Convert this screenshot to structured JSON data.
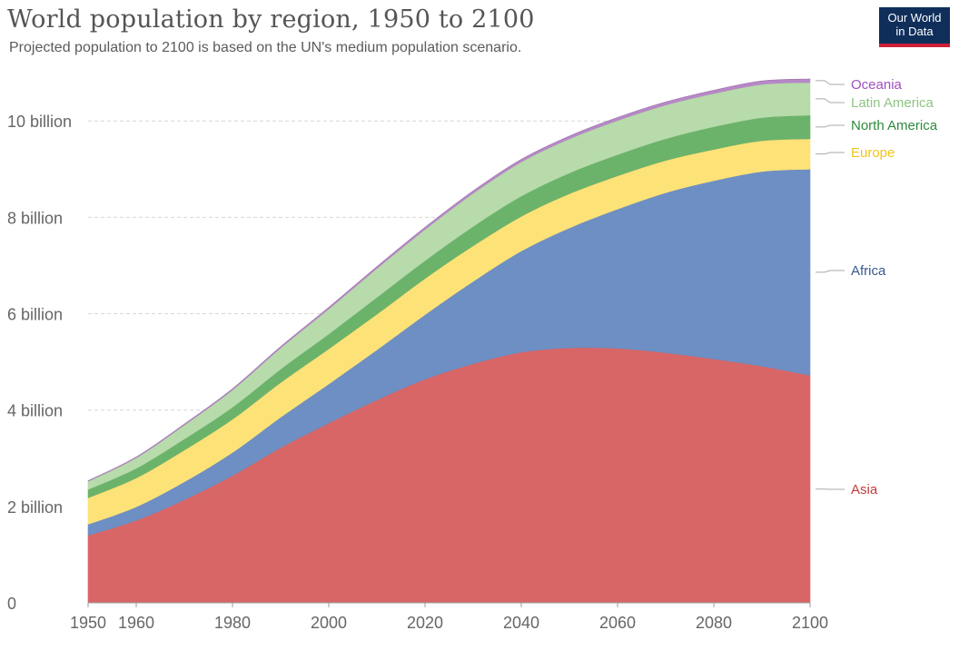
{
  "header": {
    "title": "World population by region, 1950 to 2100",
    "subtitle": "Projected population to 2100 is based on the UN's medium population scenario.",
    "logo_line1": "Our World",
    "logo_line2": "in Data"
  },
  "colors": {
    "Asia": "#d96666",
    "Africa": "#6e8fc4",
    "Europe": "#fde278",
    "North America": "#6bb36b",
    "Latin America": "#b7dbaa",
    "Oceania": "#b788c8",
    "Asia_label": "#c23b3b",
    "Africa_label": "#3a5a8c",
    "Europe_label": "#f2c418",
    "North America_label": "#2f8a3e",
    "Latin America_label": "#8fc583",
    "Oceania_label": "#a04fbf"
  },
  "chart_data": {
    "type": "area",
    "stacked": true,
    "title": "World population by region, 1950 to 2100",
    "subtitle": "Projected population to 2100 is based on the UN's medium population scenario.",
    "x": [
      1950,
      1960,
      1970,
      1980,
      1990,
      2000,
      2010,
      2020,
      2030,
      2040,
      2050,
      2060,
      2070,
      2080,
      2090,
      2100
    ],
    "x_ticks": [
      "1950",
      "1960",
      "1980",
      "2000",
      "2020",
      "2040",
      "2060",
      "2080",
      "2100"
    ],
    "x_tick_values": [
      1950,
      1960,
      1980,
      2000,
      2020,
      2040,
      2060,
      2080,
      2100
    ],
    "y_ticks": [
      "0",
      "2 billion",
      "4 billion",
      "6 billion",
      "8 billion",
      "10 billion"
    ],
    "y_tick_values": [
      0,
      2,
      4,
      6,
      8,
      10
    ],
    "ylim": [
      0,
      10.9
    ],
    "xlim": [
      1950,
      2100
    ],
    "grid": true,
    "legend": "right",
    "series": [
      {
        "name": "Asia",
        "values": [
          1.4,
          1.71,
          2.14,
          2.64,
          3.22,
          3.73,
          4.21,
          4.64,
          4.96,
          5.2,
          5.29,
          5.28,
          5.19,
          5.06,
          4.91,
          4.72
        ]
      },
      {
        "name": "Africa",
        "values": [
          0.23,
          0.28,
          0.37,
          0.48,
          0.63,
          0.81,
          1.04,
          1.34,
          1.71,
          2.1,
          2.49,
          2.89,
          3.32,
          3.7,
          4.04,
          4.28
        ]
      },
      {
        "name": "Europe",
        "values": [
          0.55,
          0.6,
          0.66,
          0.69,
          0.72,
          0.73,
          0.74,
          0.75,
          0.74,
          0.72,
          0.71,
          0.69,
          0.67,
          0.65,
          0.64,
          0.63
        ]
      },
      {
        "name": "North America",
        "values": [
          0.17,
          0.2,
          0.23,
          0.25,
          0.28,
          0.31,
          0.35,
          0.37,
          0.4,
          0.42,
          0.43,
          0.44,
          0.45,
          0.47,
          0.48,
          0.49
        ]
      },
      {
        "name": "Latin America",
        "values": [
          0.17,
          0.22,
          0.29,
          0.36,
          0.44,
          0.52,
          0.6,
          0.65,
          0.69,
          0.71,
          0.71,
          0.71,
          0.7,
          0.69,
          0.69,
          0.68
        ]
      },
      {
        "name": "Oceania",
        "values": [
          0.013,
          0.016,
          0.019,
          0.023,
          0.027,
          0.031,
          0.037,
          0.043,
          0.048,
          0.053,
          0.057,
          0.061,
          0.064,
          0.067,
          0.07,
          0.072
        ]
      }
    ]
  }
}
